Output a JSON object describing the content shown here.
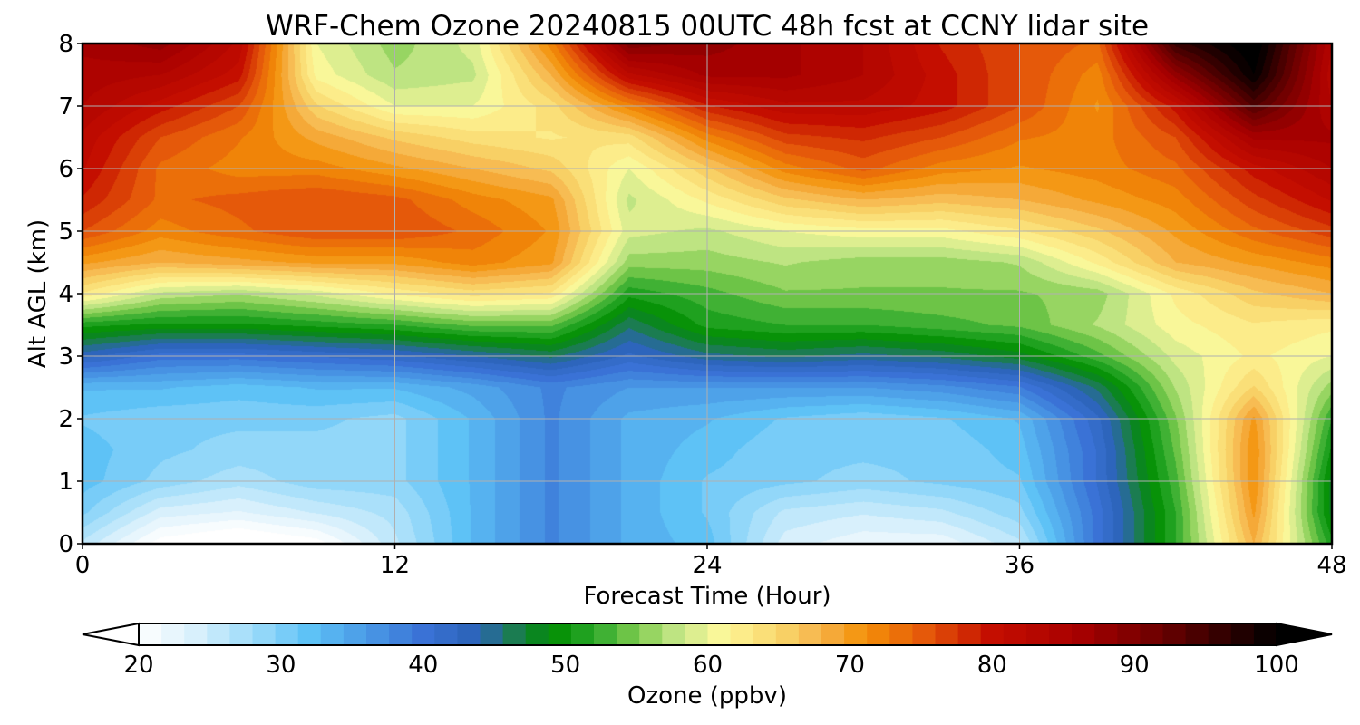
{
  "chart_data": {
    "type": "heatmap",
    "title": "WRF-Chem Ozone  20240815 00UTC 48h fcst at CCNY lidar site",
    "xlabel": "Forecast Time (Hour)",
    "ylabel": "Alt AGL (km)",
    "xlim": [
      0,
      48
    ],
    "ylim": [
      0,
      8
    ],
    "xticks": [
      0,
      12,
      24,
      36,
      48
    ],
    "yticks": [
      0,
      1,
      2,
      3,
      4,
      5,
      6,
      7,
      8
    ],
    "grid": true,
    "z_unit_label": "Ozone  (ppbv)",
    "colorbar": {
      "label": "Ozone  (ppbv)",
      "range": [
        20,
        100
      ],
      "ticks": [
        20,
        30,
        40,
        50,
        60,
        70,
        80,
        90,
        100
      ],
      "extend": "both",
      "colors": [
        [
          20,
          "#ffffff"
        ],
        [
          24,
          "#d8f0fc"
        ],
        [
          28,
          "#9fdcfa"
        ],
        [
          32,
          "#5ec2f6"
        ],
        [
          36,
          "#4a9ae6"
        ],
        [
          40,
          "#3a72d6"
        ],
        [
          44,
          "#2a62b6"
        ],
        [
          46,
          "#1f7a5e"
        ],
        [
          49,
          "#008c00"
        ],
        [
          52,
          "#2aa82a"
        ],
        [
          55,
          "#7ecb4e"
        ],
        [
          58,
          "#c8e88a"
        ],
        [
          61,
          "#fdf89a"
        ],
        [
          65,
          "#f9d76c"
        ],
        [
          68,
          "#f6b24a"
        ],
        [
          71,
          "#f49108"
        ],
        [
          75,
          "#e65c0a"
        ],
        [
          80,
          "#c40e00"
        ],
        [
          86,
          "#a80000"
        ],
        [
          92,
          "#6a0000"
        ],
        [
          100,
          "#000000"
        ]
      ]
    },
    "x": [
      0,
      3,
      6,
      9,
      12,
      15,
      18,
      21,
      24,
      27,
      30,
      33,
      36,
      39,
      42,
      45,
      48
    ],
    "y": [
      0,
      0.5,
      1,
      1.5,
      2,
      2.5,
      3,
      3.5,
      4,
      4.5,
      5,
      5.5,
      6,
      6.5,
      7,
      7.5,
      8
    ],
    "z": [
      [
        26,
        19,
        17,
        19,
        26,
        33,
        38,
        34,
        32,
        24,
        22,
        22,
        26,
        40,
        52,
        68,
        51
      ],
      [
        30,
        24,
        23,
        25,
        27,
        33,
        38,
        34,
        31,
        26,
        25,
        26,
        29,
        40,
        52,
        70,
        48
      ],
      [
        32,
        29,
        27,
        29,
        29,
        33,
        38,
        34,
        31,
        30,
        29,
        30,
        31,
        41,
        53,
        71,
        48
      ],
      [
        32,
        30,
        29,
        29,
        29,
        33,
        38,
        34,
        32,
        30,
        30,
        30,
        32,
        41,
        54,
        71,
        50
      ],
      [
        31,
        30,
        30,
        30,
        29,
        33,
        38,
        34,
        33,
        31,
        30,
        31,
        33,
        42,
        55,
        70,
        52
      ],
      [
        33,
        33,
        32,
        33,
        33,
        35,
        38,
        36,
        36,
        36,
        36,
        37,
        39,
        46,
        57,
        65,
        56
      ],
      [
        43,
        40,
        40,
        41,
        42,
        44,
        46,
        42,
        45,
        46,
        45,
        46,
        48,
        53,
        59,
        62,
        60
      ],
      [
        51,
        50,
        50,
        51,
        52,
        54,
        54,
        46,
        51,
        52,
        52,
        53,
        54,
        57,
        61,
        63,
        62
      ],
      [
        63,
        58,
        57,
        59,
        62,
        64,
        63,
        51,
        53,
        55,
        55,
        55,
        55,
        56,
        62,
        66,
        68
      ],
      [
        70,
        68,
        69,
        70,
        70,
        72,
        70,
        56,
        56,
        57,
        56,
        56,
        57,
        62,
        68,
        70,
        72
      ],
      [
        76,
        72,
        74,
        76,
        76,
        74,
        71,
        59,
        58,
        60,
        61,
        61,
        63,
        66,
        70,
        74,
        77
      ],
      [
        79,
        74,
        75,
        76,
        75,
        72,
        70,
        58,
        62,
        66,
        68,
        67,
        68,
        70,
        72,
        77,
        81
      ],
      [
        81,
        74,
        72,
        72,
        70,
        68,
        66,
        60,
        66,
        72,
        75,
        72,
        71,
        72,
        74,
        80,
        84
      ],
      [
        82,
        76,
        73,
        69,
        66,
        64,
        63,
        64,
        72,
        77,
        78,
        76,
        73,
        72,
        76,
        86,
        86
      ],
      [
        84,
        80,
        76,
        65,
        60,
        60,
        64,
        72,
        79,
        82,
        82,
        80,
        76,
        71,
        80,
        94,
        84
      ],
      [
        85,
        84,
        80,
        61,
        57,
        58,
        68,
        82,
        86,
        86,
        84,
        80,
        76,
        72,
        88,
        100,
        83
      ],
      [
        86,
        88,
        82,
        60,
        56,
        59,
        72,
        90,
        88,
        86,
        84,
        79,
        76,
        74,
        96,
        102,
        84
      ]
    ]
  }
}
